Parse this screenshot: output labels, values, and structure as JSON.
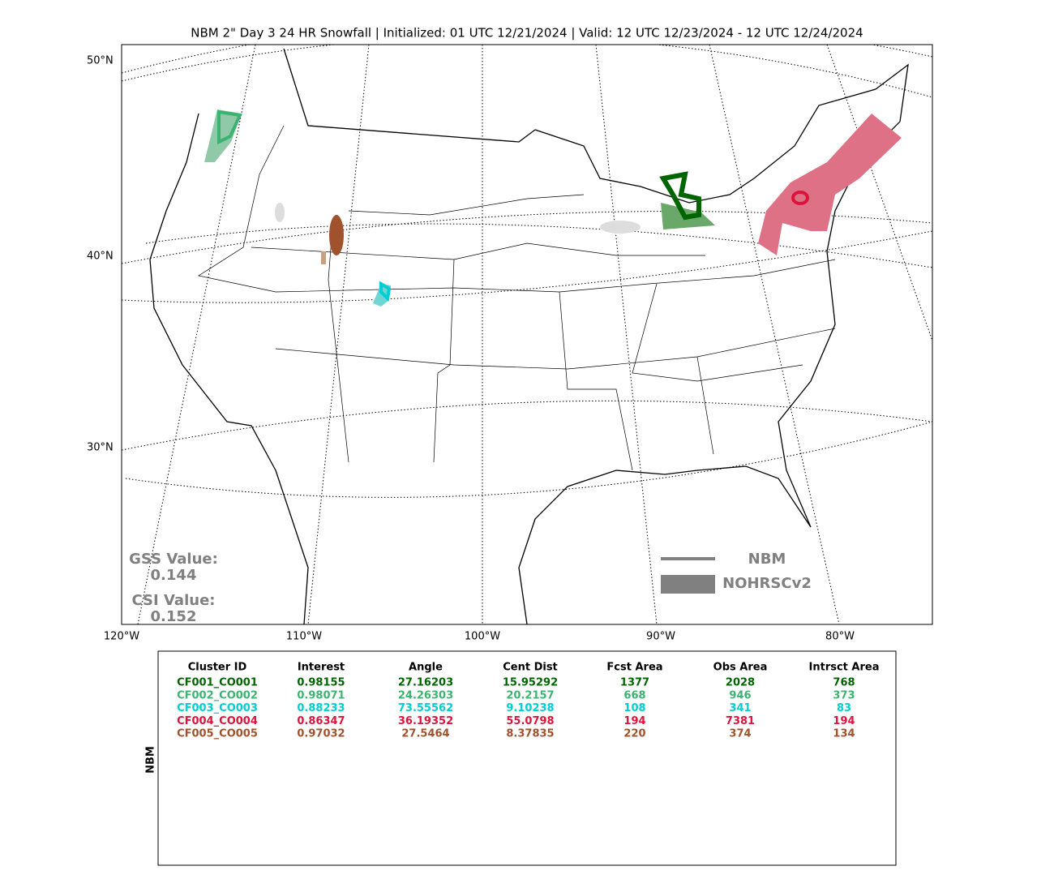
{
  "title": "NBM 2\" Day 3 24 HR Snowfall | Initialized: 01 UTC 12/21/2024 | Valid: 12 UTC 12/23/2024 - 12 UTC 12/24/2024",
  "map": {
    "lat_labels": [
      "50°N",
      "40°N",
      "30°N"
    ],
    "lon_labels": [
      "120°W",
      "110°W",
      "100°W",
      "90°W",
      "80°W"
    ],
    "gss_label": "GSS Value:",
    "gss_value": "0.144",
    "csi_label": "CSI Value:",
    "csi_value": "0.152",
    "legend": [
      "NBM",
      "NOHRSCv2"
    ]
  },
  "table": {
    "side_label": "NBM",
    "header": [
      "Cluster ID",
      "Interest",
      "Angle",
      "Cent Dist",
      "Fcst Area",
      "Obs Area",
      "Intrsct Area"
    ],
    "colors": [
      "#006400",
      "#3cb371",
      "#00ced1",
      "#dc143c",
      "#a0522d"
    ],
    "rows": [
      [
        "CF001_CO001",
        "0.98155",
        "27.16203",
        "15.95292",
        "1377",
        "2028",
        "768"
      ],
      [
        "CF002_CO002",
        "0.98071",
        "24.26303",
        "20.2157",
        "668",
        "946",
        "373"
      ],
      [
        "CF003_CO003",
        "0.88233",
        "73.55562",
        "9.10238",
        "108",
        "341",
        "83"
      ],
      [
        "CF004_CO004",
        "0.86347",
        "36.19352",
        "55.0798",
        "194",
        "7381",
        "194"
      ],
      [
        "CF005_CO005",
        "0.97032",
        "27.5464",
        "8.37835",
        "220",
        "374",
        "134"
      ]
    ]
  }
}
